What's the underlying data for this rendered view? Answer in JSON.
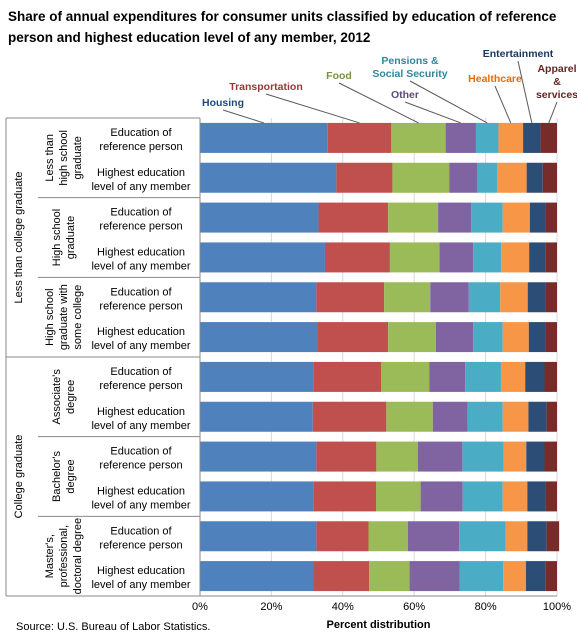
{
  "chart_data": {
    "type": "bar",
    "orientation": "horizontal",
    "stacked": true,
    "title": "Share of annual expenditures for consumer units classified by education of reference person and highest education level of any member, 2012",
    "xlabel": "Percent distribution",
    "source": "Source: U.S. Bureau of Labor Statistics.",
    "xlim": [
      0,
      100
    ],
    "x_ticks": [
      "0%",
      "20%",
      "40%",
      "60%",
      "80%",
      "100%"
    ],
    "grid": true,
    "legend_placement": "top (callout labels)",
    "outer_groups": [
      {
        "label": "Less than college graduate",
        "groups": [
          0,
          1,
          2
        ]
      },
      {
        "label": "College graduate",
        "groups": [
          3,
          4,
          5
        ]
      }
    ],
    "groups": [
      {
        "label": [
          "Less than",
          "high school",
          "graduate"
        ]
      },
      {
        "label": [
          "High school",
          "graduate"
        ]
      },
      {
        "label": [
          "High school",
          "graduate with",
          "some college"
        ]
      },
      {
        "label": [
          "Associate's",
          "degree"
        ]
      },
      {
        "label": [
          "Bachelor's",
          "degree"
        ]
      },
      {
        "label": [
          "Master's,",
          "professional,",
          "doctoral degree"
        ]
      }
    ],
    "row_labels": [
      [
        "Education of",
        "reference person"
      ],
      [
        "Highest education",
        "level of any member"
      ]
    ],
    "series": [
      {
        "name": "Housing",
        "color": "#4f81bd",
        "label_color": "#1f497d",
        "values": [
          35.8,
          38.2,
          33.2,
          35.0,
          32.6,
          32.9,
          31.7,
          31.6,
          32.6,
          31.9,
          32.6,
          31.8
        ]
      },
      {
        "name": "Transportation",
        "color": "#c0504d",
        "label_color": "#953735",
        "values": [
          17.8,
          15.7,
          19.5,
          18.2,
          19.0,
          19.8,
          19.0,
          20.6,
          16.8,
          17.4,
          14.6,
          15.6
        ]
      },
      {
        "name": "Food",
        "color": "#9bbb59",
        "label_color": "#76923c",
        "values": [
          15.2,
          15.9,
          14.0,
          13.9,
          12.9,
          13.4,
          13.5,
          13.0,
          11.6,
          12.5,
          11.0,
          11.3
        ]
      },
      {
        "name": "Other",
        "color": "#8064a2",
        "label_color": "#5f497a",
        "values": [
          8.5,
          7.9,
          9.3,
          9.4,
          10.8,
          10.4,
          10.1,
          9.8,
          12.5,
          11.8,
          14.4,
          14.0
        ]
      },
      {
        "name": "Pensions & Social Security",
        "color": "#4bacc6",
        "label_color": "#31859c",
        "values": [
          6.3,
          5.6,
          8.8,
          7.9,
          8.8,
          8.3,
          10.0,
          9.8,
          11.6,
          11.2,
          13.0,
          12.2
        ]
      },
      {
        "name": "Healthcare",
        "color": "#f79646",
        "label_color": "#e36c09",
        "values": [
          6.9,
          8.2,
          7.6,
          7.8,
          7.7,
          7.3,
          6.8,
          7.2,
          6.3,
          6.9,
          6.1,
          6.4
        ]
      },
      {
        "name": "Entertainment",
        "color": "#2c4d75",
        "label_color": "#17375e",
        "values": [
          4.9,
          4.5,
          4.5,
          4.5,
          5.1,
          4.8,
          5.4,
          5.1,
          5.1,
          5.1,
          5.4,
          5.4
        ]
      },
      {
        "name": "Apparel & services",
        "color": "#772c2a",
        "label_color": "#632423",
        "values": [
          4.6,
          4.0,
          3.1,
          3.3,
          3.1,
          3.1,
          3.5,
          2.9,
          3.5,
          3.2,
          3.5,
          3.3
        ]
      }
    ]
  }
}
